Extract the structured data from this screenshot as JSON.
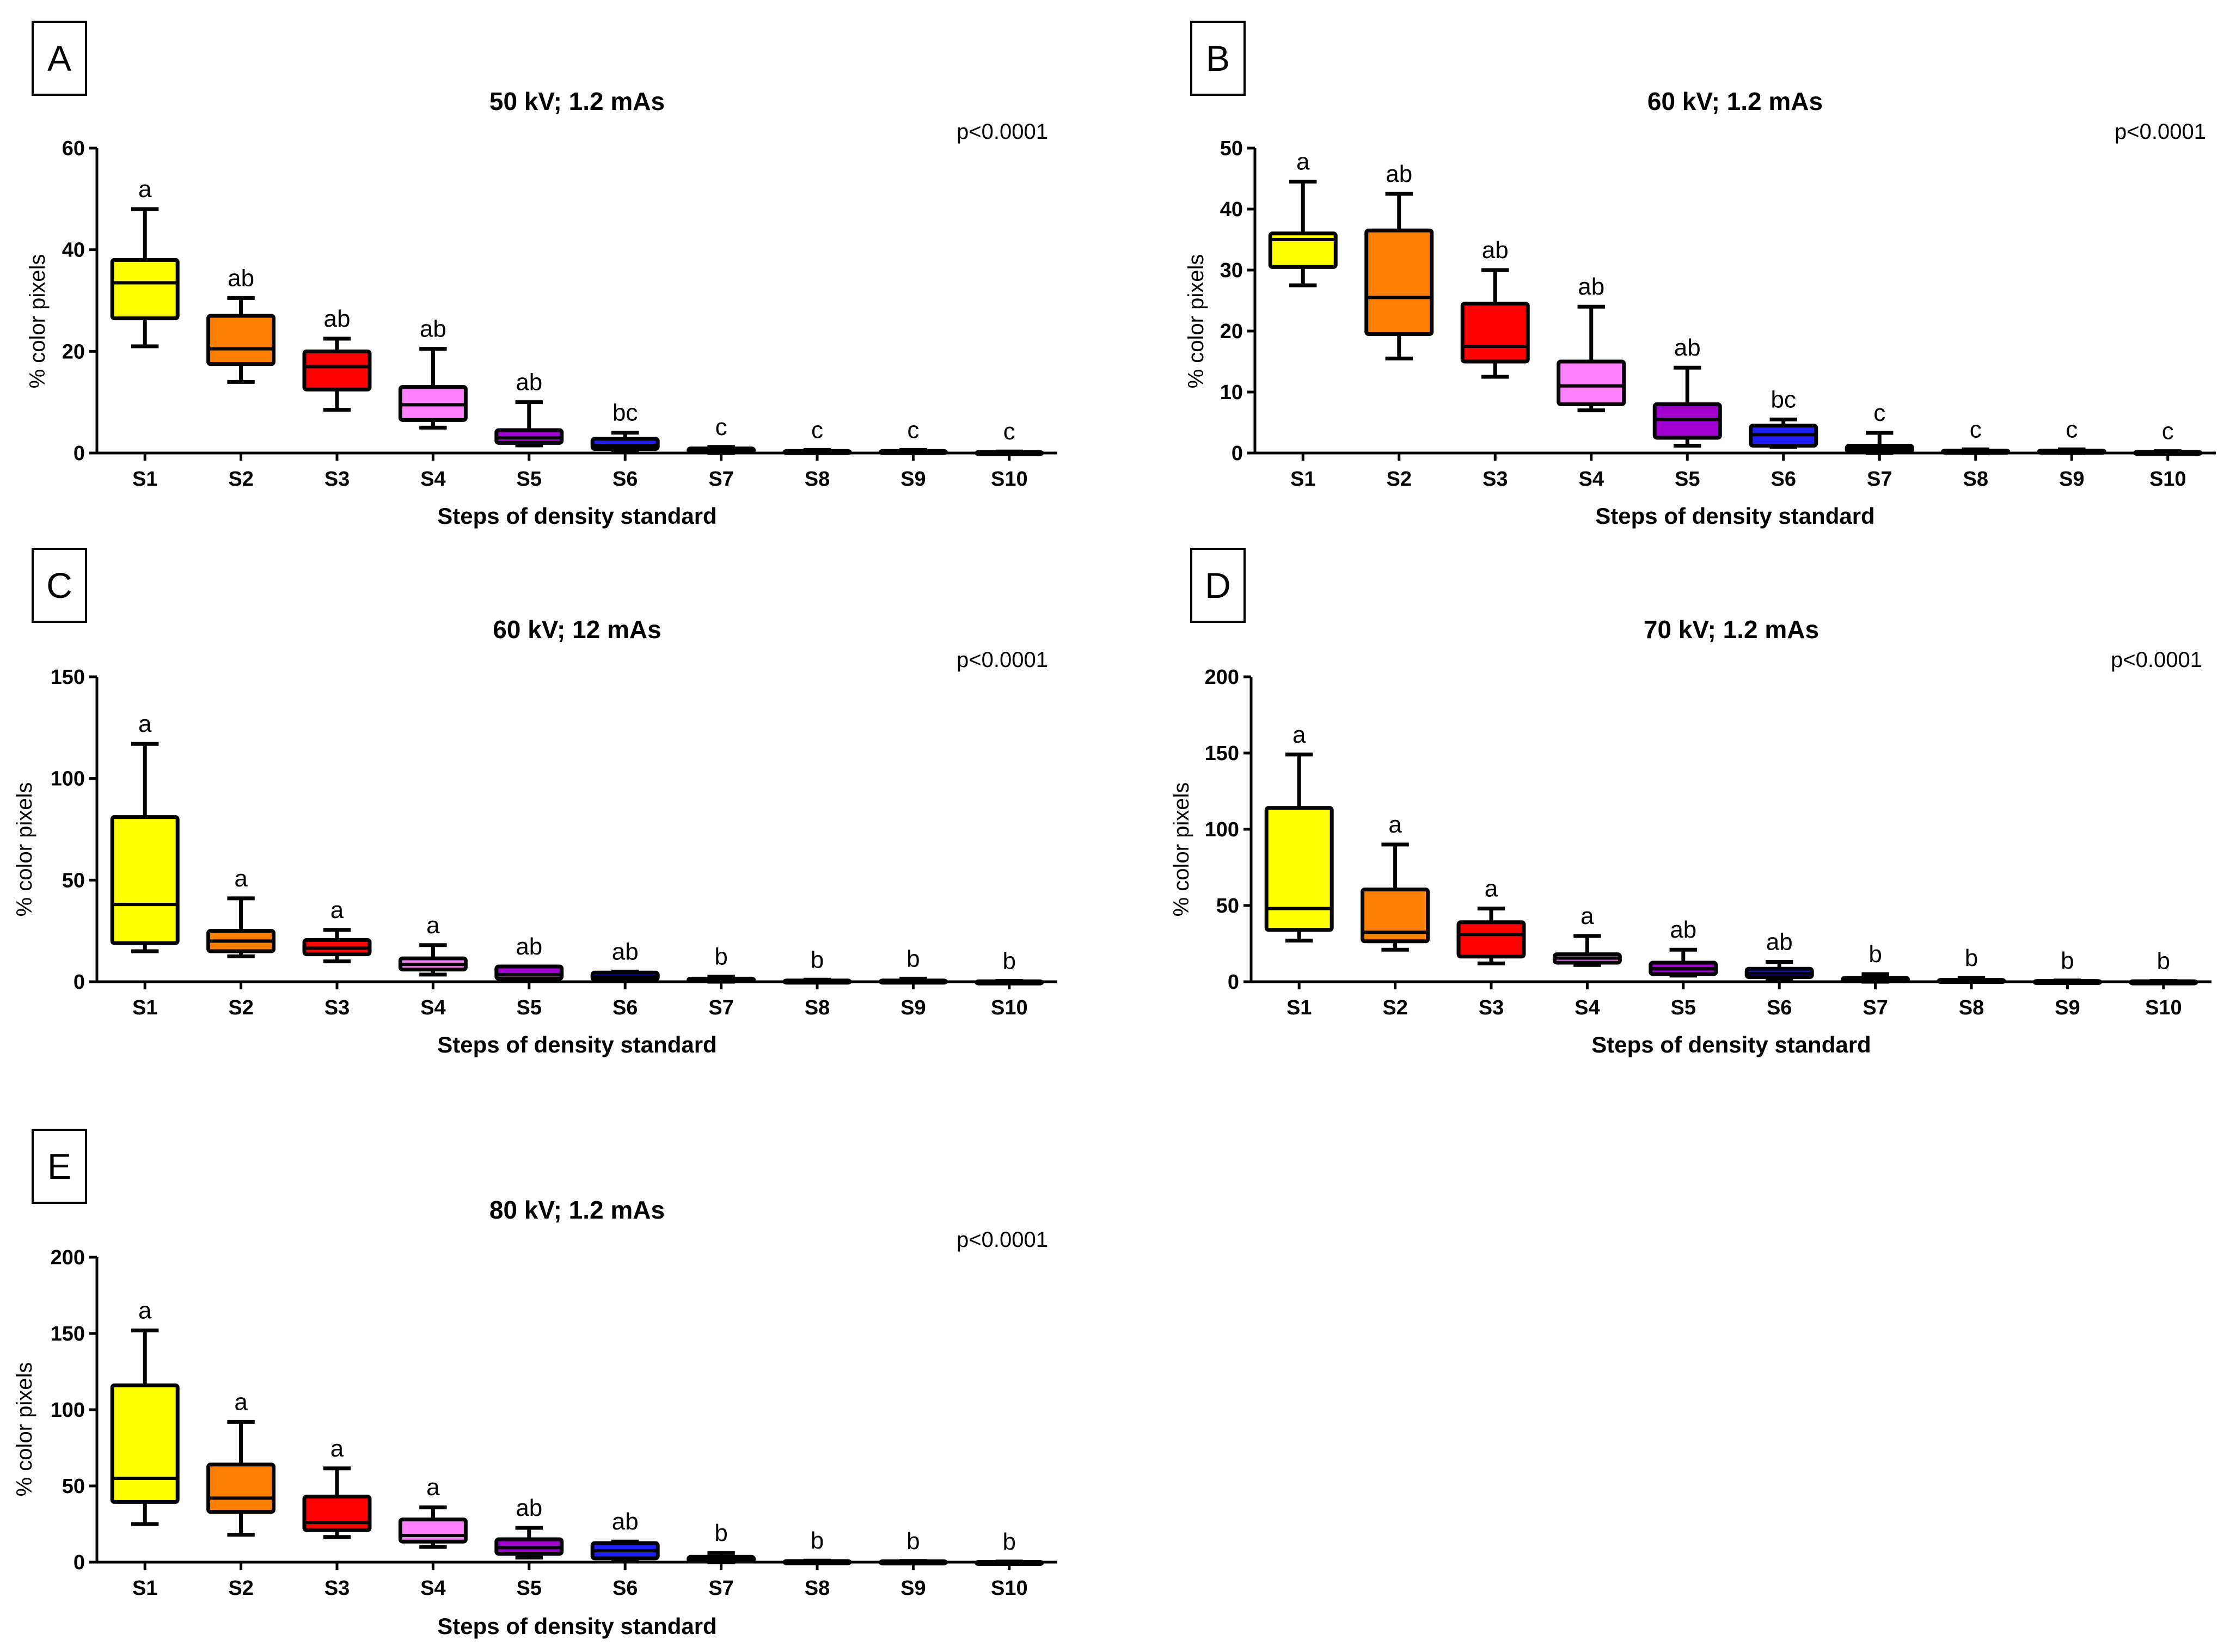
{
  "chart_data": [
    {
      "type": "boxplot",
      "panel": "A",
      "title": "50 kV; 1.2 mAs",
      "annotation": "p<0.0001",
      "xlabel": "Steps of density standard",
      "ylabel": "% color pixels",
      "ylim": [
        0,
        60
      ],
      "yticks": [
        0,
        20,
        40,
        60
      ],
      "categories": [
        "S1",
        "S2",
        "S3",
        "S4",
        "S5",
        "S6",
        "S7",
        "S8",
        "S9",
        "S10"
      ],
      "boxes": [
        {
          "min": 21,
          "q1": 26.5,
          "median": 33.5,
          "q3": 38,
          "max": 48,
          "label": "a",
          "color": "#ffff00"
        },
        {
          "min": 14,
          "q1": 17.5,
          "median": 20.5,
          "q3": 27,
          "max": 30.5,
          "label": "ab",
          "color": "#ff8000"
        },
        {
          "min": 8.5,
          "q1": 12.5,
          "median": 17,
          "q3": 20,
          "max": 22.5,
          "label": "ab",
          "color": "#ff0000"
        },
        {
          "min": 5,
          "q1": 6.5,
          "median": 9.5,
          "q3": 13,
          "max": 20.5,
          "label": "ab",
          "color": "#ff80ff"
        },
        {
          "min": 1.5,
          "q1": 2,
          "median": 3,
          "q3": 4.5,
          "max": 10,
          "label": "ab",
          "color": "#a000d0"
        },
        {
          "min": 0.3,
          "q1": 0.8,
          "median": 1.5,
          "q3": 2.8,
          "max": 4,
          "label": "bc",
          "color": "#2020ff"
        },
        {
          "min": 0,
          "q1": 0.2,
          "median": 0.5,
          "q3": 0.9,
          "max": 1.2,
          "label": "c",
          "color": "#000000"
        },
        {
          "min": 0,
          "q1": 0.1,
          "median": 0.2,
          "q3": 0.4,
          "max": 0.6,
          "label": "c",
          "color": "#000000"
        },
        {
          "min": 0,
          "q1": 0.1,
          "median": 0.2,
          "q3": 0.4,
          "max": 0.6,
          "label": "c",
          "color": "#000000"
        },
        {
          "min": 0,
          "q1": 0.05,
          "median": 0.1,
          "q3": 0.2,
          "max": 0.3,
          "label": "c",
          "color": "#000000"
        }
      ]
    },
    {
      "type": "boxplot",
      "panel": "B",
      "title": "60 kV; 1.2 mAs",
      "annotation": "p<0.0001",
      "xlabel": "Steps of density standard",
      "ylabel": "% color pixels",
      "ylim": [
        0,
        50
      ],
      "yticks": [
        0,
        10,
        20,
        30,
        40,
        50
      ],
      "categories": [
        "S1",
        "S2",
        "S3",
        "S4",
        "S5",
        "S6",
        "S7",
        "S8",
        "S9",
        "S10"
      ],
      "boxes": [
        {
          "min": 27.5,
          "q1": 30.5,
          "median": 35,
          "q3": 36,
          "max": 44.5,
          "label": "a",
          "color": "#ffff00"
        },
        {
          "min": 15.5,
          "q1": 19.5,
          "median": 25.5,
          "q3": 36.5,
          "max": 42.5,
          "label": "ab",
          "color": "#ff8000"
        },
        {
          "min": 12.5,
          "q1": 15,
          "median": 17.5,
          "q3": 24.5,
          "max": 30,
          "label": "ab",
          "color": "#ff0000"
        },
        {
          "min": 7,
          "q1": 8,
          "median": 11,
          "q3": 15,
          "max": 24,
          "label": "ab",
          "color": "#ff80ff"
        },
        {
          "min": 1.2,
          "q1": 2.5,
          "median": 5.5,
          "q3": 8,
          "max": 14,
          "label": "ab",
          "color": "#a000d0"
        },
        {
          "min": 1,
          "q1": 1.2,
          "median": 3,
          "q3": 4.5,
          "max": 5.5,
          "label": "bc",
          "color": "#2020ff"
        },
        {
          "min": 0,
          "q1": 0.2,
          "median": 0.6,
          "q3": 1.2,
          "max": 3.3,
          "label": "c",
          "color": "#000000"
        },
        {
          "min": 0,
          "q1": 0.1,
          "median": 0.2,
          "q3": 0.4,
          "max": 0.6,
          "label": "c",
          "color": "#000000"
        },
        {
          "min": 0,
          "q1": 0.1,
          "median": 0.2,
          "q3": 0.4,
          "max": 0.6,
          "label": "c",
          "color": "#000000"
        },
        {
          "min": 0,
          "q1": 0.05,
          "median": 0.1,
          "q3": 0.2,
          "max": 0.3,
          "label": "c",
          "color": "#000000"
        }
      ]
    },
    {
      "type": "boxplot",
      "panel": "C",
      "title": "60 kV; 12 mAs",
      "annotation": "p<0.0001",
      "xlabel": "Steps of density standard",
      "ylabel": "% color pixels",
      "ylim": [
        0,
        150
      ],
      "yticks": [
        0,
        50,
        100,
        150
      ],
      "categories": [
        "S1",
        "S2",
        "S3",
        "S4",
        "S5",
        "S6",
        "S7",
        "S8",
        "S9",
        "S10"
      ],
      "boxes": [
        {
          "min": 15,
          "q1": 19,
          "median": 38,
          "q3": 81,
          "max": 117,
          "label": "a",
          "color": "#ffff00"
        },
        {
          "min": 12.5,
          "q1": 15,
          "median": 20,
          "q3": 25,
          "max": 41,
          "label": "a",
          "color": "#ff8000"
        },
        {
          "min": 10,
          "q1": 13.5,
          "median": 16.5,
          "q3": 20.5,
          "max": 25.5,
          "label": "a",
          "color": "#ff0000"
        },
        {
          "min": 3.5,
          "q1": 6,
          "median": 8.5,
          "q3": 11.5,
          "max": 18,
          "label": "a",
          "color": "#ff80ff"
        },
        {
          "min": 0.5,
          "q1": 1.5,
          "median": 3.5,
          "q3": 7.5,
          "max": 7.5,
          "label": "ab",
          "color": "#a000d0"
        },
        {
          "min": 0.5,
          "q1": 1,
          "median": 2.5,
          "q3": 4.5,
          "max": 5,
          "label": "ab",
          "color": "#2020ff"
        },
        {
          "min": 0,
          "q1": 0.3,
          "median": 0.8,
          "q3": 1.5,
          "max": 2.5,
          "label": "b",
          "color": "#000000"
        },
        {
          "min": 0,
          "q1": 0.1,
          "median": 0.3,
          "q3": 0.6,
          "max": 1,
          "label": "b",
          "color": "#000000"
        },
        {
          "min": 0,
          "q1": 0.1,
          "median": 0.3,
          "q3": 0.6,
          "max": 1.5,
          "label": "b",
          "color": "#000000"
        },
        {
          "min": 0,
          "q1": 0.05,
          "median": 0.1,
          "q3": 0.2,
          "max": 0.4,
          "label": "b",
          "color": "#000000"
        }
      ]
    },
    {
      "type": "boxplot",
      "panel": "D",
      "title": "70 kV; 1.2 mAs",
      "annotation": "p<0.0001",
      "xlabel": "Steps of density standard",
      "ylabel": "% color pixels",
      "ylim": [
        0,
        200
      ],
      "yticks": [
        0,
        50,
        100,
        150,
        200
      ],
      "categories": [
        "S1",
        "S2",
        "S3",
        "S4",
        "S5",
        "S6",
        "S7",
        "S8",
        "S9",
        "S10"
      ],
      "boxes": [
        {
          "min": 27,
          "q1": 34,
          "median": 48,
          "q3": 114,
          "max": 149,
          "label": "a",
          "color": "#ffff00"
        },
        {
          "min": 21,
          "q1": 26.5,
          "median": 32.5,
          "q3": 60.5,
          "max": 90,
          "label": "a",
          "color": "#ff8000"
        },
        {
          "min": 12,
          "q1": 16.5,
          "median": 31,
          "q3": 39,
          "max": 48,
          "label": "a",
          "color": "#ff0000"
        },
        {
          "min": 11,
          "q1": 12.5,
          "median": 15.5,
          "q3": 18,
          "max": 30,
          "label": "a",
          "color": "#ff80ff"
        },
        {
          "min": 4,
          "q1": 5,
          "median": 8.5,
          "q3": 12.5,
          "max": 21,
          "label": "ab",
          "color": "#a000d0"
        },
        {
          "min": 1.5,
          "q1": 3,
          "median": 5.5,
          "q3": 8.5,
          "max": 13,
          "label": "ab",
          "color": "#2020ff"
        },
        {
          "min": 0,
          "q1": 0.3,
          "median": 1,
          "q3": 2.5,
          "max": 5,
          "label": "b",
          "color": "#000000"
        },
        {
          "min": 0,
          "q1": 0.2,
          "median": 0.5,
          "q3": 1.2,
          "max": 2.5,
          "label": "b",
          "color": "#000000"
        },
        {
          "min": 0,
          "q1": 0.1,
          "median": 0.2,
          "q3": 0.5,
          "max": 0.8,
          "label": "b",
          "color": "#000000"
        },
        {
          "min": 0,
          "q1": 0.05,
          "median": 0.1,
          "q3": 0.3,
          "max": 0.5,
          "label": "b",
          "color": "#000000"
        }
      ]
    },
    {
      "type": "boxplot",
      "panel": "E",
      "title": "80 kV; 1.2 mAs",
      "annotation": "p<0.0001",
      "xlabel": "Steps of density standard",
      "ylabel": "% color pixels",
      "ylim": [
        0,
        200
      ],
      "yticks": [
        0,
        50,
        100,
        150,
        200
      ],
      "categories": [
        "S1",
        "S2",
        "S3",
        "S4",
        "S5",
        "S6",
        "S7",
        "S8",
        "S9",
        "S10"
      ],
      "boxes": [
        {
          "min": 25,
          "q1": 39.5,
          "median": 55,
          "q3": 116,
          "max": 152,
          "label": "a",
          "color": "#ffff00"
        },
        {
          "min": 18,
          "q1": 33,
          "median": 42,
          "q3": 64,
          "max": 92,
          "label": "a",
          "color": "#ff8000"
        },
        {
          "min": 16.5,
          "q1": 21,
          "median": 26,
          "q3": 43,
          "max": 61.5,
          "label": "a",
          "color": "#ff0000"
        },
        {
          "min": 10,
          "q1": 13.5,
          "median": 17.5,
          "q3": 28,
          "max": 36,
          "label": "a",
          "color": "#ff80ff"
        },
        {
          "min": 3,
          "q1": 5.5,
          "median": 9.5,
          "q3": 15,
          "max": 22.5,
          "label": "ab",
          "color": "#a000d0"
        },
        {
          "min": 1,
          "q1": 2.5,
          "median": 7.5,
          "q3": 12.5,
          "max": 13.5,
          "label": "ab",
          "color": "#2020ff"
        },
        {
          "min": 0,
          "q1": 0.5,
          "median": 1.5,
          "q3": 3.5,
          "max": 6,
          "label": "b",
          "color": "#000000"
        },
        {
          "min": 0,
          "q1": 0.1,
          "median": 0.3,
          "q3": 0.7,
          "max": 1,
          "label": "b",
          "color": "#000000"
        },
        {
          "min": 0,
          "q1": 0.1,
          "median": 0.3,
          "q3": 0.6,
          "max": 0.8,
          "label": "b",
          "color": "#000000"
        },
        {
          "min": 0,
          "q1": 0.05,
          "median": 0.1,
          "q3": 0.2,
          "max": 0.4,
          "label": "b",
          "color": "#000000"
        }
      ]
    }
  ]
}
